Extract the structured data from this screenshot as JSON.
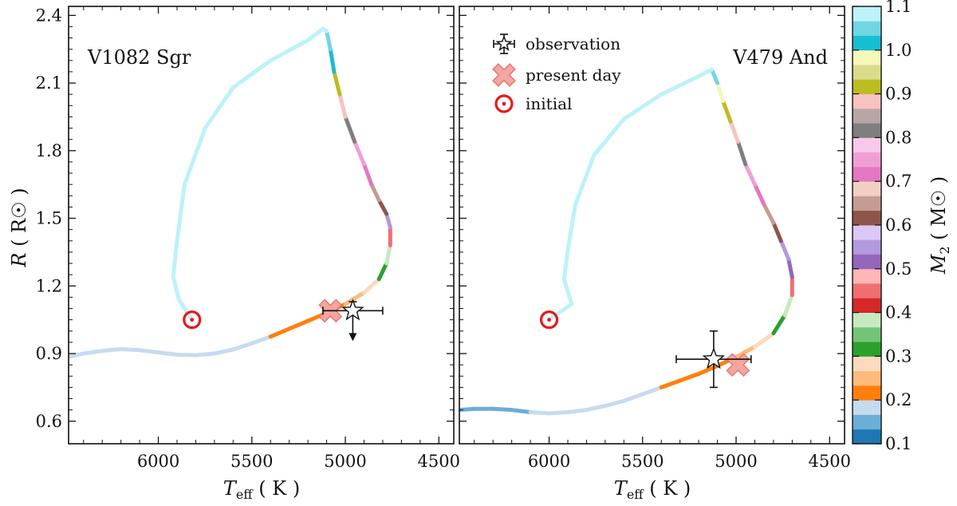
{
  "chart_data": [
    {
      "type": "line",
      "panel_label": "V1082 Sgr",
      "xlabel": "T_eff (K)",
      "ylabel": "R (R☉)",
      "xlim": [
        6480,
        4420
      ],
      "ylim": [
        0.5,
        2.44
      ],
      "xticks": [
        6000,
        5500,
        5000,
        4500
      ],
      "yticks": [
        0.6,
        0.9,
        1.2,
        1.5,
        1.8,
        2.1,
        2.4
      ],
      "track": [
        [
          6480,
          0.885
        ],
        [
          6400,
          0.9
        ],
        [
          6300,
          0.912
        ],
        [
          6200,
          0.92
        ],
        [
          6100,
          0.915
        ],
        [
          6000,
          0.905
        ],
        [
          5900,
          0.895
        ],
        [
          5800,
          0.893
        ],
        [
          5700,
          0.9
        ],
        [
          5600,
          0.918
        ],
        [
          5500,
          0.945
        ],
        [
          5400,
          0.975
        ],
        [
          5300,
          1.01
        ],
        [
          5200,
          1.045
        ],
        [
          5100,
          1.08
        ],
        [
          5000,
          1.12
        ],
        [
          4900,
          1.17
        ],
        [
          4820,
          1.23
        ],
        [
          4780,
          1.3
        ],
        [
          4760,
          1.38
        ],
        [
          4760,
          1.46
        ],
        [
          4780,
          1.52
        ],
        [
          4820,
          1.58
        ],
        [
          4860,
          1.65
        ],
        [
          4900,
          1.74
        ],
        [
          4950,
          1.84
        ],
        [
          5000,
          1.95
        ],
        [
          5030,
          2.05
        ],
        [
          5060,
          2.15
        ],
        [
          5080,
          2.25
        ],
        [
          5100,
          2.33
        ],
        [
          5120,
          2.34
        ],
        [
          5200,
          2.29
        ],
        [
          5400,
          2.2
        ],
        [
          5600,
          2.08
        ],
        [
          5750,
          1.9
        ],
        [
          5860,
          1.65
        ],
        [
          5900,
          1.4
        ],
        [
          5920,
          1.24
        ],
        [
          5890,
          1.14
        ],
        [
          5820,
          1.05
        ]
      ],
      "m2_along_track": [
        0.17,
        0.17,
        0.17,
        0.17,
        0.17,
        0.17,
        0.17,
        0.17,
        0.17,
        0.17,
        0.19,
        0.21,
        0.21,
        0.21,
        0.21,
        0.25,
        0.29,
        0.32,
        0.38,
        0.45,
        0.55,
        0.6,
        0.65,
        0.7,
        0.75,
        0.8,
        0.88,
        0.93,
        1.0,
        1.05,
        1.08,
        1.1,
        1.1,
        1.1,
        1.1,
        1.1,
        1.1,
        1.1,
        1.1,
        1.1,
        1.1
      ],
      "observation": {
        "teff": 4960,
        "teff_err": 160,
        "r": 1.09,
        "r_err_up": 0.04,
        "upper_limit": true
      },
      "present_day": {
        "teff": 5080,
        "r": 1.09
      },
      "initial": {
        "teff": 5820,
        "r": 1.05
      }
    },
    {
      "type": "line",
      "panel_label": "V479 And",
      "xlabel": "T_eff (K)",
      "ylabel": "",
      "xlim": [
        6480,
        4420
      ],
      "ylim": [
        0.5,
        2.44
      ],
      "xticks": [
        6000,
        5500,
        5000,
        4500
      ],
      "yticks": [
        0.6,
        0.9,
        1.2,
        1.5,
        1.8,
        2.1,
        2.4
      ],
      "track": [
        [
          6480,
          0.65
        ],
        [
          6400,
          0.655
        ],
        [
          6300,
          0.655
        ],
        [
          6200,
          0.65
        ],
        [
          6100,
          0.64
        ],
        [
          6000,
          0.635
        ],
        [
          5900,
          0.64
        ],
        [
          5800,
          0.65
        ],
        [
          5700,
          0.668
        ],
        [
          5600,
          0.69
        ],
        [
          5500,
          0.72
        ],
        [
          5400,
          0.75
        ],
        [
          5300,
          0.78
        ],
        [
          5200,
          0.81
        ],
        [
          5100,
          0.845
        ],
        [
          5000,
          0.885
        ],
        [
          4900,
          0.93
        ],
        [
          4800,
          0.99
        ],
        [
          4740,
          1.07
        ],
        [
          4700,
          1.16
        ],
        [
          4700,
          1.24
        ],
        [
          4720,
          1.32
        ],
        [
          4760,
          1.4
        ],
        [
          4800,
          1.48
        ],
        [
          4850,
          1.56
        ],
        [
          4900,
          1.65
        ],
        [
          4950,
          1.74
        ],
        [
          4990,
          1.84
        ],
        [
          5030,
          1.93
        ],
        [
          5070,
          2.02
        ],
        [
          5100,
          2.1
        ],
        [
          5130,
          2.16
        ],
        [
          5200,
          2.13
        ],
        [
          5400,
          2.05
        ],
        [
          5600,
          1.94
        ],
        [
          5760,
          1.78
        ],
        [
          5860,
          1.56
        ],
        [
          5900,
          1.36
        ],
        [
          5920,
          1.23
        ],
        [
          5880,
          1.12
        ],
        [
          6000,
          1.05
        ]
      ],
      "m2_along_track": [
        0.15,
        0.15,
        0.15,
        0.15,
        0.17,
        0.17,
        0.17,
        0.17,
        0.17,
        0.17,
        0.19,
        0.21,
        0.21,
        0.21,
        0.23,
        0.25,
        0.27,
        0.32,
        0.38,
        0.45,
        0.5,
        0.55,
        0.6,
        0.65,
        0.7,
        0.75,
        0.8,
        0.88,
        0.93,
        0.98,
        1.05,
        1.08,
        1.1,
        1.1,
        1.1,
        1.1,
        1.1,
        1.1,
        1.1,
        1.1,
        1.1
      ],
      "observation": {
        "teff": 5120,
        "teff_err": 200,
        "r": 0.875,
        "r_err": 0.125
      },
      "present_day": {
        "teff": 4990,
        "r": 0.85
      },
      "initial": {
        "teff": 6000,
        "r": 1.05
      }
    }
  ],
  "legend": {
    "items": [
      {
        "label": "observation",
        "marker": "star-errorbar"
      },
      {
        "label": "present day",
        "marker": "pink-cross"
      },
      {
        "label": "initial",
        "marker": "red-target"
      }
    ]
  },
  "colorbar": {
    "label": "M2 (M☉)",
    "min": 0.1,
    "max": 1.1,
    "ticks": [
      "0.1",
      "0.2",
      "0.3",
      "0.4",
      "0.5",
      "0.6",
      "0.7",
      "0.8",
      "0.9",
      "1.0",
      "1.1"
    ],
    "colors": [
      "#1f77b4",
      "#6baed6",
      "#c6dbef",
      "#ff7f0e",
      "#ffbb78",
      "#fdd9bf",
      "#2ca02c",
      "#74c476",
      "#c7e9c0",
      "#d62728",
      "#ef6f70",
      "#ffb6b6",
      "#9467bd",
      "#b399dd",
      "#dcc8f5",
      "#8c564b",
      "#c49c94",
      "#f2cfc4",
      "#e377c2",
      "#f09fd6",
      "#f9c8ea",
      "#7f7f7f",
      "#b8a5a5",
      "#f8c2c2",
      "#bcbd22",
      "#dbdb8d",
      "#f7f7b8",
      "#17becf",
      "#6fd6e2",
      "#bdf2f8"
    ]
  },
  "colors": {
    "initial_ring": "#e41a1c",
    "present_day_fill": "#f4a6a0",
    "present_day_edge": "#e8756f",
    "observation_fill": "#ffffff",
    "axis": "#111111"
  }
}
